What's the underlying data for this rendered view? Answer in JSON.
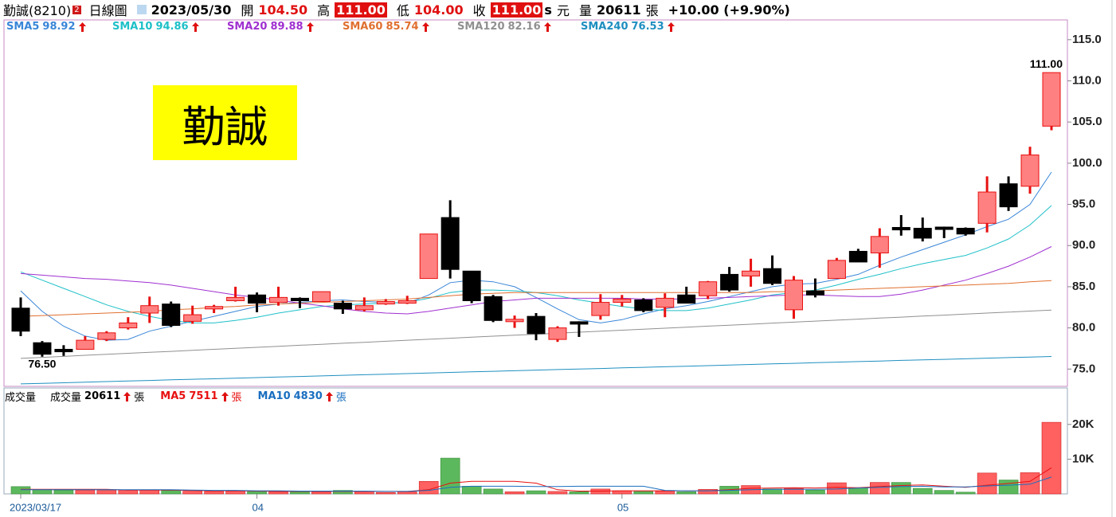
{
  "header": {
    "name": "勤誠(8210)",
    "badge": "2",
    "period": "日線圖",
    "date": "2023/05/30",
    "open_label": "開",
    "open": "104.50",
    "high_label": "高",
    "high": "111.00",
    "low_label": "低",
    "low": "104.00",
    "close_label": "收",
    "close": "111.00",
    "s": "s",
    "currency": "元",
    "volume_label": "量",
    "unit": "張",
    "change": "+10.00 (+9.90%)"
  },
  "overlay_label": "勤誠",
  "chart_data": [
    {
      "type": "candlestick",
      "categories": [
        "2023/03/17",
        null,
        null,
        null,
        null,
        null,
        null,
        null,
        null,
        null,
        null,
        "04",
        null,
        null,
        null,
        null,
        null,
        null,
        null,
        null,
        null,
        null,
        null,
        null,
        null,
        null,
        null,
        null,
        "05",
        null,
        null,
        null,
        null,
        null,
        null,
        null,
        null,
        null,
        null,
        null,
        null,
        null,
        null,
        null,
        null,
        null,
        null,
        null,
        null
      ],
      "open": [
        82.4,
        78.2,
        77.4,
        77.4,
        78.6,
        80.0,
        81.8,
        82.9,
        80.8,
        82.3,
        83.3,
        84.0,
        83.1,
        83.6,
        83.2,
        83.0,
        82.2,
        82.9,
        83.0,
        86.0,
        93.4,
        86.9,
        83.8,
        80.7,
        81.4,
        78.6,
        80.6,
        81.5,
        83.1,
        83.4,
        82.5,
        84.0,
        83.9,
        86.5,
        86.3,
        87.2,
        82.2,
        84.5,
        86.0,
        89.3,
        89.1,
        92.2,
        92.1,
        92.1,
        92.1,
        92.7,
        97.5,
        97.2,
        104.5
      ],
      "high": [
        83.7,
        78.4,
        77.9,
        79.0,
        79.6,
        81.3,
        83.8,
        83.2,
        82.7,
        82.8,
        85.0,
        84.3,
        85.0,
        83.7,
        84.4,
        83.3,
        83.7,
        83.5,
        83.9,
        91.4,
        95.5,
        86.9,
        84.0,
        81.5,
        81.8,
        80.2,
        80.8,
        84.1,
        84.0,
        83.6,
        84.2,
        85.0,
        85.7,
        87.4,
        88.4,
        88.8,
        86.3,
        86.0,
        88.5,
        89.6,
        92.1,
        93.7,
        93.4,
        92.3,
        92.2,
        98.4,
        98.4,
        102.0,
        111.0
      ],
      "low": [
        79.0,
        76.5,
        76.6,
        77.4,
        78.4,
        79.8,
        80.6,
        80.1,
        80.5,
        81.8,
        83.2,
        81.9,
        82.7,
        82.4,
        83.2,
        81.7,
        82.0,
        82.8,
        82.9,
        86.0,
        86.0,
        83.0,
        80.7,
        80.0,
        78.5,
        78.3,
        78.9,
        81.0,
        82.6,
        81.9,
        81.3,
        83.0,
        83.5,
        84.4,
        85.0,
        85.2,
        81.1,
        83.7,
        86.0,
        88.0,
        87.3,
        91.2,
        90.5,
        90.9,
        91.2,
        91.6,
        94.2,
        96.3,
        104.0
      ],
      "close": [
        79.6,
        76.8,
        77.1,
        78.5,
        79.4,
        80.6,
        82.7,
        80.3,
        81.6,
        82.6,
        83.7,
        83.0,
        83.7,
        83.3,
        84.4,
        82.3,
        82.7,
        83.2,
        83.3,
        91.4,
        87.1,
        83.3,
        80.9,
        80.9,
        79.3,
        80.0,
        80.5,
        83.1,
        83.5,
        82.1,
        83.6,
        83.0,
        85.6,
        84.6,
        86.9,
        85.4,
        85.8,
        84.0,
        88.2,
        88.0,
        91.1,
        91.9,
        90.9,
        91.9,
        91.4,
        96.5,
        94.7,
        101.0,
        111.0
      ],
      "up_color": "#ff8080",
      "up_line": "#e81010",
      "down_color": "#000000",
      "high_label": "111.00",
      "low_label": "76.50",
      "series": [
        {
          "name": "SMA5",
          "color": "#3a86d8",
          "values": [
            84.5,
            82.0,
            80.2,
            79.0,
            78.5,
            78.6,
            79.6,
            80.2,
            80.8,
            81.4,
            82.0,
            82.6,
            82.9,
            83.1,
            83.3,
            83.4,
            83.2,
            83.1,
            83.0,
            84.0,
            85.5,
            85.8,
            85.6,
            85.0,
            83.7,
            82.3,
            81.0,
            80.6,
            81.0,
            81.7,
            82.3,
            82.7,
            83.2,
            83.8,
            84.4,
            85.0,
            85.3,
            85.4,
            85.9,
            86.5,
            87.6,
            88.6,
            89.5,
            90.4,
            91.3,
            92.3,
            93.2,
            95.0,
            98.92
          ]
        },
        {
          "name": "SMA10",
          "color": "#1ec0c8",
          "values": [
            86.8,
            85.8,
            84.8,
            83.8,
            82.8,
            82.0,
            81.4,
            80.9,
            80.6,
            80.6,
            80.9,
            81.3,
            81.8,
            82.2,
            82.6,
            82.8,
            82.9,
            83.0,
            83.1,
            83.6,
            84.3,
            84.6,
            84.6,
            84.5,
            84.3,
            83.9,
            83.4,
            83.0,
            82.6,
            82.3,
            82.1,
            82.1,
            82.4,
            82.9,
            83.4,
            84.0,
            84.3,
            84.6,
            85.2,
            85.9,
            86.5,
            87.2,
            87.8,
            88.3,
            88.8,
            89.7,
            90.8,
            92.5,
            94.86
          ]
        },
        {
          "name": "SMA20",
          "color": "#a030d0",
          "values": [
            86.6,
            86.4,
            86.2,
            86.0,
            85.9,
            85.7,
            85.5,
            85.2,
            84.8,
            84.4,
            84.0,
            83.7,
            83.4,
            83.0,
            82.7,
            82.3,
            82.0,
            81.8,
            81.7,
            82.0,
            82.4,
            82.8,
            83.2,
            83.4,
            83.6,
            83.6,
            83.6,
            83.6,
            83.6,
            83.5,
            83.5,
            83.5,
            83.6,
            83.7,
            83.8,
            83.9,
            84.0,
            84.0,
            83.9,
            83.8,
            83.8,
            84.1,
            84.6,
            85.2,
            85.8,
            86.6,
            87.5,
            88.6,
            89.88
          ]
        },
        {
          "name": "SMA60",
          "color": "#e07030",
          "values": [
            81.4,
            81.5,
            81.6,
            81.7,
            81.8,
            81.9,
            82.0,
            82.2,
            82.3,
            82.5,
            82.6,
            82.8,
            82.9,
            83.0,
            83.1,
            83.2,
            83.3,
            83.4,
            83.5,
            83.7,
            83.9,
            84.1,
            84.2,
            84.3,
            84.3,
            84.3,
            84.3,
            84.3,
            84.3,
            84.3,
            84.3,
            84.3,
            84.3,
            84.3,
            84.3,
            84.4,
            84.4,
            84.5,
            84.6,
            84.7,
            84.8,
            84.9,
            85.0,
            85.1,
            85.2,
            85.3,
            85.4,
            85.6,
            85.74
          ]
        },
        {
          "name": "SMA120",
          "color": "#909090",
          "values": [
            76.3,
            76.42,
            76.54,
            76.67,
            76.79,
            76.91,
            77.03,
            77.15,
            77.28,
            77.4,
            77.52,
            77.64,
            77.77,
            77.89,
            78.01,
            78.13,
            78.25,
            78.38,
            78.5,
            78.62,
            78.74,
            78.87,
            78.99,
            79.11,
            79.23,
            79.35,
            79.48,
            79.6,
            79.72,
            79.84,
            79.96,
            80.09,
            80.21,
            80.33,
            80.45,
            80.58,
            80.7,
            80.82,
            80.94,
            81.06,
            81.19,
            81.31,
            81.43,
            81.55,
            81.67,
            81.8,
            81.92,
            82.04,
            82.16
          ]
        },
        {
          "name": "SMA240",
          "color": "#1f8fc0",
          "values": [
            73.2,
            73.27,
            73.34,
            73.41,
            73.48,
            73.55,
            73.62,
            73.69,
            73.76,
            73.82,
            73.89,
            73.96,
            74.03,
            74.1,
            74.17,
            74.24,
            74.31,
            74.38,
            74.45,
            74.52,
            74.59,
            74.66,
            74.73,
            74.8,
            74.87,
            74.94,
            75.0,
            75.07,
            75.14,
            75.21,
            75.28,
            75.35,
            75.42,
            75.49,
            75.56,
            75.63,
            75.7,
            75.77,
            75.84,
            75.91,
            75.98,
            76.05,
            76.12,
            76.18,
            76.25,
            76.32,
            76.39,
            76.46,
            76.53
          ]
        }
      ],
      "ylim": [
        72.9,
        117.4
      ],
      "yticks": [
        {
          "value": 75,
          "label": "75.0"
        },
        {
          "value": 80,
          "label": "80.0"
        },
        {
          "value": 85,
          "label": "85.0"
        },
        {
          "value": 90,
          "label": "90.0"
        },
        {
          "value": 95,
          "label": "95.0"
        },
        {
          "value": 100,
          "label": "100.0"
        },
        {
          "value": 105,
          "label": "105.0"
        },
        {
          "value": 110,
          "label": "110.0"
        },
        {
          "value": 115,
          "label": "115.0"
        }
      ]
    },
    {
      "type": "bar",
      "title": "成交量",
      "name": "成交量",
      "values": [
        2100,
        1300,
        1100,
        1100,
        1000,
        1100,
        1100,
        1000,
        800,
        700,
        800,
        700,
        600,
        600,
        600,
        1000,
        700,
        400,
        600,
        3600,
        10300,
        2200,
        1400,
        600,
        900,
        700,
        600,
        1400,
        900,
        700,
        800,
        600,
        1300,
        2200,
        2400,
        1400,
        1600,
        1100,
        3200,
        1700,
        3300,
        3300,
        1600,
        1000,
        500,
        6000,
        4000,
        6100,
        20611
      ],
      "up_color": "#ff6060",
      "down_color": "#5cb85c",
      "series": [
        {
          "name": "MA5",
          "color": "#e81010",
          "values": [
            1300,
            1300,
            1300,
            1300,
            1300,
            1100,
            1100,
            1100,
            1000,
            900,
            900,
            800,
            700,
            700,
            700,
            700,
            700,
            700,
            700,
            1200,
            3100,
            3600,
            3600,
            3600,
            3100,
            1200,
            800,
            800,
            900,
            900,
            900,
            900,
            900,
            1200,
            1600,
            1700,
            1800,
            1700,
            1900,
            1800,
            2100,
            2400,
            2600,
            2200,
            1900,
            2500,
            3000,
            3600,
            7511
          ]
        },
        {
          "name": "MA10",
          "color": "#1a6fc0",
          "values": [
            1200,
            1200,
            1200,
            1200,
            1200,
            1200,
            1200,
            1200,
            1100,
            1000,
            1000,
            900,
            900,
            800,
            800,
            800,
            800,
            700,
            700,
            1000,
            1900,
            2200,
            2200,
            2200,
            2100,
            2100,
            2200,
            2200,
            2200,
            2200,
            1000,
            900,
            900,
            1000,
            1200,
            1300,
            1300,
            1300,
            1400,
            1700,
            1900,
            2100,
            2200,
            2000,
            2000,
            2300,
            2500,
            2800,
            4830
          ]
        }
      ],
      "ylim": [
        0,
        30500
      ],
      "yticks": [
        {
          "value": 10000,
          "label": "10K"
        },
        {
          "value": 20000,
          "label": "20K"
        }
      ]
    }
  ]
}
